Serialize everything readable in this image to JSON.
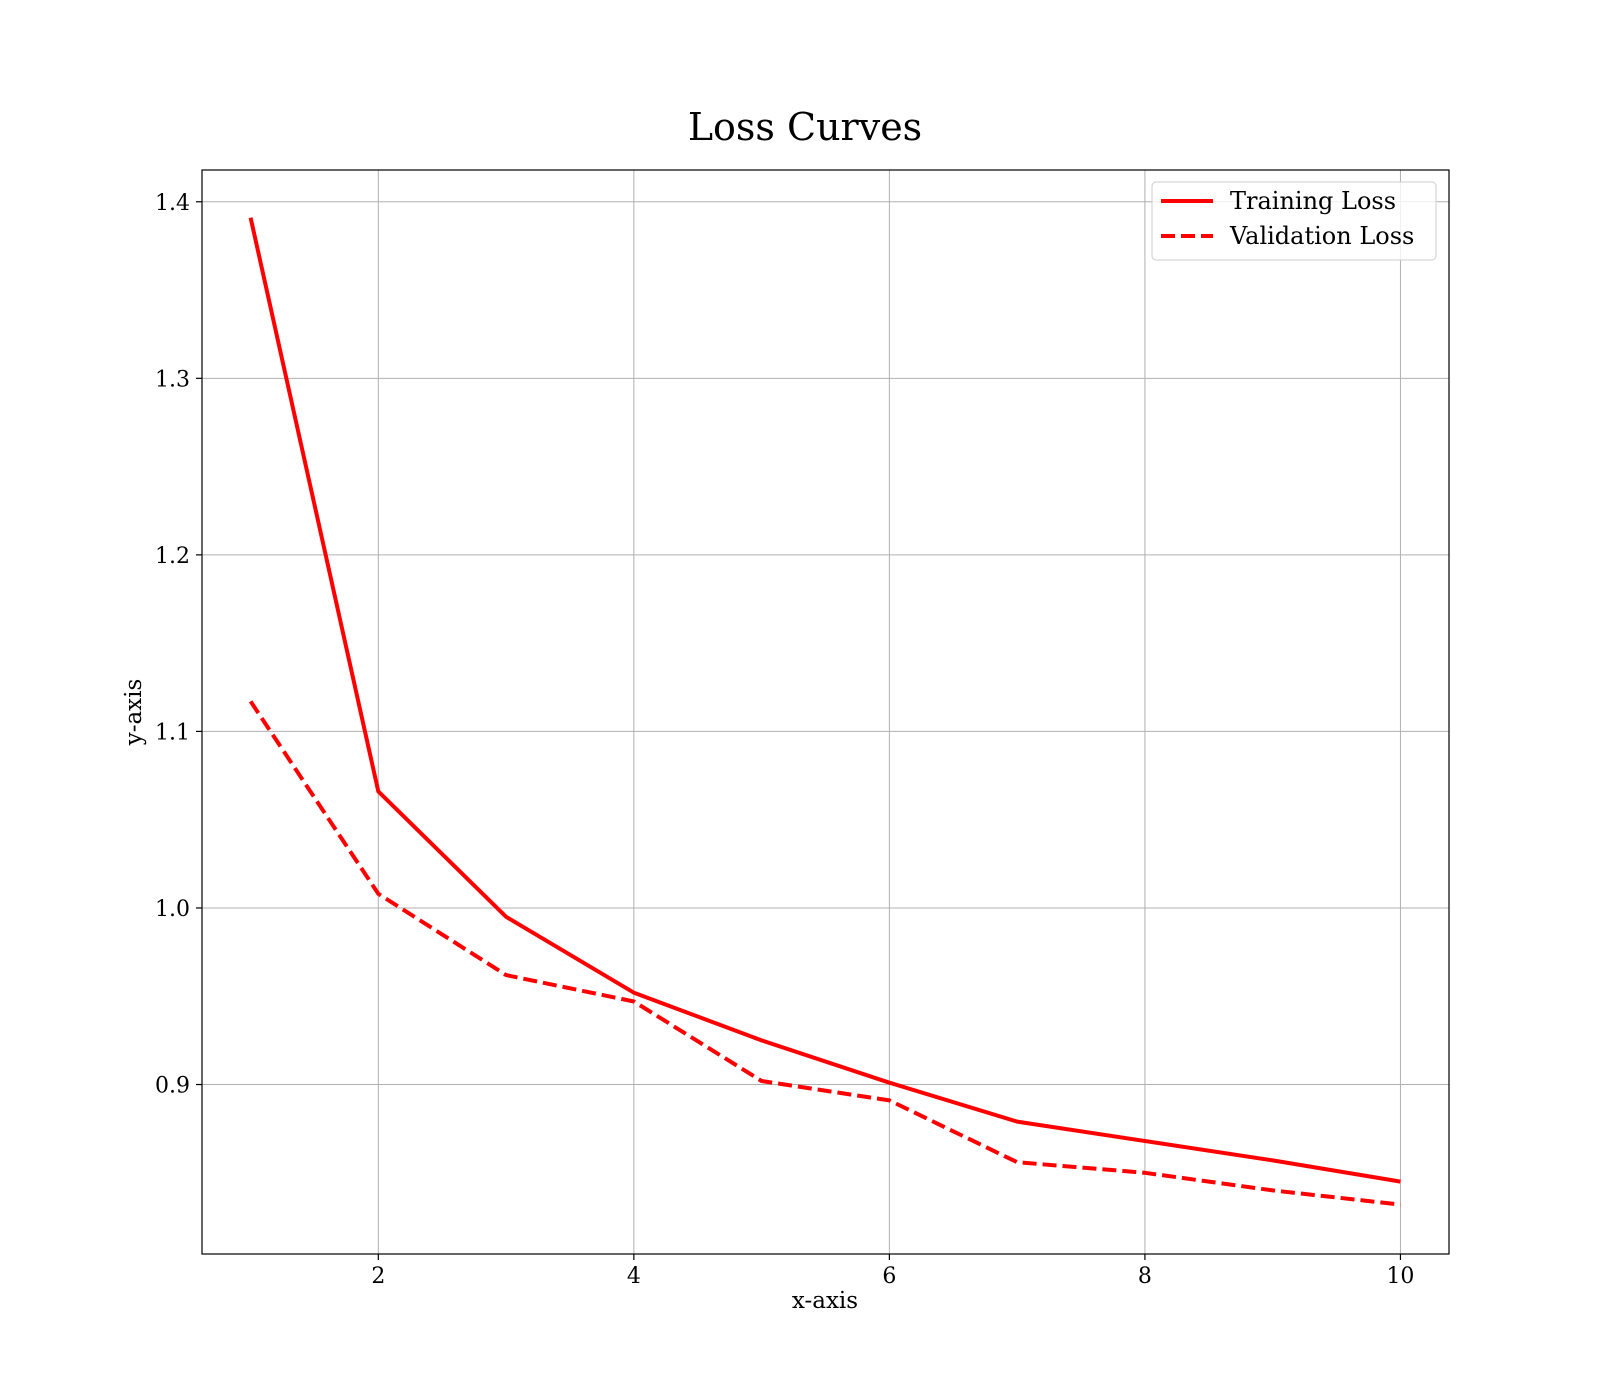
{
  "chart_data": {
    "type": "line",
    "title": "Loss Curves",
    "xlabel": "x-axis",
    "ylabel": "y-axis",
    "xlim": [
      0.62,
      10.38
    ],
    "ylim": [
      0.804,
      1.418
    ],
    "xticks": [
      2,
      4,
      6,
      8,
      10
    ],
    "xtick_labels": [
      "2",
      "4",
      "6",
      "8",
      "10"
    ],
    "yticks": [
      0.9,
      1.0,
      1.1,
      1.2,
      1.3,
      1.4
    ],
    "ytick_labels": [
      "0.9",
      "1.0",
      "1.1",
      "1.2",
      "1.3",
      "1.4"
    ],
    "grid": true,
    "legend_position": "top-right",
    "x": [
      1,
      2,
      3,
      4,
      5,
      6,
      7,
      8,
      9,
      10
    ],
    "series": [
      {
        "name": "Training Loss",
        "color": "#ff0000",
        "linestyle": "solid",
        "values": [
          1.391,
          1.066,
          0.995,
          0.952,
          0.925,
          0.901,
          0.879,
          0.868,
          0.857,
          0.845
        ]
      },
      {
        "name": "Validation Loss",
        "color": "#ff0000",
        "linestyle": "dashed",
        "values": [
          1.117,
          1.008,
          0.962,
          0.947,
          0.902,
          0.891,
          0.856,
          0.85,
          0.84,
          0.832
        ]
      }
    ]
  }
}
